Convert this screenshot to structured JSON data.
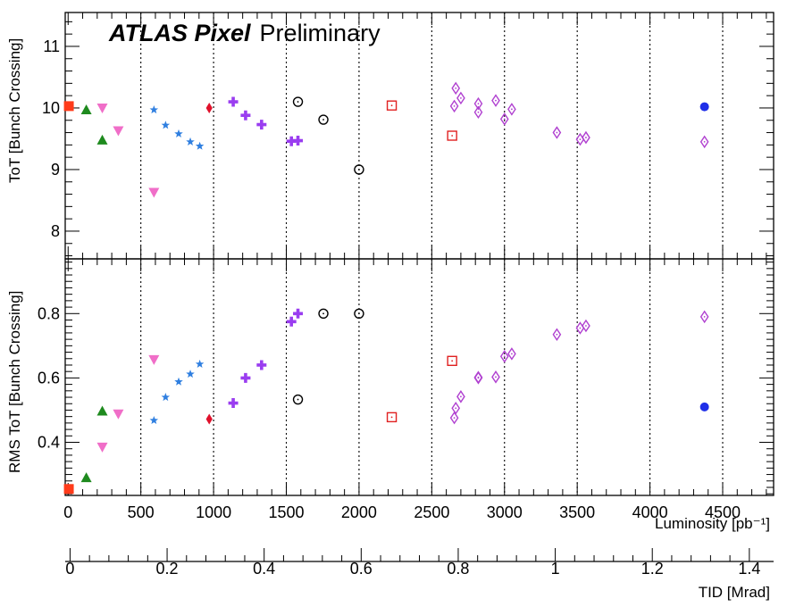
{
  "chart_data": {
    "type": "scatter",
    "title_bold": "ATLAS Pixel",
    "title_rest": "Preliminary",
    "xlabel": "Luminosity [pb⁻¹]",
    "x2label": "TID [Mrad]",
    "xlim": [
      -20,
      4850
    ],
    "xticks": [
      0,
      500,
      1000,
      1500,
      2000,
      2500,
      3000,
      3500,
      4000,
      4500
    ],
    "xtick_labels": [
      "0",
      "500",
      "1000",
      "1500",
      "2000",
      "2500",
      "3000",
      "3500",
      "4000",
      "4500"
    ],
    "x_gridlines": [
      500,
      1000,
      1500,
      2000,
      2500,
      3000,
      3500,
      4000,
      4500
    ],
    "x2lim": [
      -0.01,
      1.45
    ],
    "x2ticks": [
      0,
      0.2,
      0.4,
      0.6,
      0.8,
      1,
      1.2,
      1.4
    ],
    "x2tick_labels": [
      "0",
      "0.2",
      "0.4",
      "0.6",
      "0.8",
      "1",
      "1.2",
      "1.4"
    ],
    "panels": [
      {
        "ylabel": "ToT [Bunch Crossing]",
        "ylim": [
          7.55,
          11.55
        ],
        "yticks": [
          8,
          9,
          10,
          11
        ],
        "ytick_labels": [
          "8",
          "9",
          "10",
          "11"
        ],
        "series": [
          {
            "name": "red-square",
            "marker": "square",
            "filled": true,
            "color": "#ff3b1a",
            "points": [
              [
                5,
                10.03
              ]
            ]
          },
          {
            "name": "green-triangle",
            "marker": "triangle-up",
            "filled": true,
            "color": "#1e8a1e",
            "points": [
              [
                125,
                9.97
              ],
              [
                235,
                9.48
              ]
            ]
          },
          {
            "name": "pink-triangle-down",
            "marker": "triangle-down",
            "filled": true,
            "color": "#f06ec8",
            "points": [
              [
                235,
                10.0
              ],
              [
                345,
                9.63
              ],
              [
                590,
                8.63
              ]
            ]
          },
          {
            "name": "blue-star",
            "marker": "star",
            "filled": true,
            "color": "#2f7fe0",
            "points": [
              [
                590,
                9.97
              ],
              [
                670,
                9.72
              ],
              [
                760,
                9.58
              ],
              [
                840,
                9.45
              ],
              [
                905,
                9.38
              ]
            ]
          },
          {
            "name": "red-diamond",
            "marker": "diamond",
            "filled": true,
            "color": "#e0112b",
            "points": [
              [
                970,
                10.0
              ]
            ]
          },
          {
            "name": "purple-cross",
            "marker": "cross",
            "filled": true,
            "color": "#9a3df0",
            "points": [
              [
                1135,
                10.1
              ],
              [
                1220,
                9.88
              ],
              [
                1330,
                9.73
              ],
              [
                1535,
                9.46
              ],
              [
                1580,
                9.47
              ]
            ]
          },
          {
            "name": "black-circle",
            "marker": "circle-dot",
            "filled": false,
            "color": "#000000",
            "points": [
              [
                1580,
                10.1
              ],
              [
                1755,
                9.81
              ],
              [
                2000,
                9.0
              ]
            ]
          },
          {
            "name": "red-open-square",
            "marker": "square-dot",
            "filled": false,
            "color": "#e02020",
            "points": [
              [
                2225,
                10.04
              ],
              [
                2640,
                9.55
              ]
            ]
          },
          {
            "name": "violet-open-diamond",
            "marker": "diamond-dot",
            "filled": false,
            "color": "#b040d0",
            "points": [
              [
                2665,
                10.32
              ],
              [
                2700,
                10.16
              ],
              [
                2655,
                10.03
              ],
              [
                2820,
                10.07
              ],
              [
                2820,
                9.93
              ],
              [
                2940,
                10.12
              ],
              [
                3000,
                9.82
              ],
              [
                3050,
                9.98
              ],
              [
                3360,
                9.6
              ],
              [
                3520,
                9.49
              ],
              [
                3560,
                9.52
              ],
              [
                4375,
                9.45
              ]
            ]
          },
          {
            "name": "blue-circle",
            "marker": "circle",
            "filled": true,
            "color": "#1f2fe8",
            "points": [
              [
                4375,
                10.02
              ]
            ]
          }
        ]
      },
      {
        "ylabel": "RMS ToT [Bunch Crossing]",
        "ylim": [
          0.235,
          0.97
        ],
        "yticks": [
          0.4,
          0.6,
          0.8
        ],
        "ytick_labels": [
          "0.4",
          "0.6",
          "0.8"
        ],
        "series": [
          {
            "name": "red-square",
            "marker": "square",
            "filled": true,
            "color": "#ff3b1a",
            "points": [
              [
                5,
                0.255
              ]
            ]
          },
          {
            "name": "green-triangle",
            "marker": "triangle-up",
            "filled": true,
            "color": "#1e8a1e",
            "points": [
              [
                125,
                0.29
              ],
              [
                235,
                0.497
              ]
            ]
          },
          {
            "name": "pink-triangle-down",
            "marker": "triangle-down",
            "filled": true,
            "color": "#f06ec8",
            "points": [
              [
                235,
                0.385
              ],
              [
                345,
                0.488
              ],
              [
                590,
                0.657
              ]
            ]
          },
          {
            "name": "blue-star",
            "marker": "star",
            "filled": true,
            "color": "#2f7fe0",
            "points": [
              [
                590,
                0.468
              ],
              [
                670,
                0.54
              ],
              [
                760,
                0.588
              ],
              [
                840,
                0.612
              ],
              [
                905,
                0.643
              ]
            ]
          },
          {
            "name": "red-diamond",
            "marker": "diamond",
            "filled": true,
            "color": "#e0112b",
            "points": [
              [
                970,
                0.472
              ]
            ]
          },
          {
            "name": "purple-cross",
            "marker": "cross",
            "filled": true,
            "color": "#9a3df0",
            "points": [
              [
                1135,
                0.522
              ],
              [
                1220,
                0.6
              ],
              [
                1330,
                0.64
              ],
              [
                1535,
                0.775
              ],
              [
                1580,
                0.8
              ]
            ]
          },
          {
            "name": "black-circle",
            "marker": "circle-dot",
            "filled": false,
            "color": "#000000",
            "points": [
              [
                1580,
                0.533
              ],
              [
                1755,
                0.8
              ],
              [
                2000,
                0.8
              ]
            ]
          },
          {
            "name": "red-open-square",
            "marker": "square-dot",
            "filled": false,
            "color": "#e02020",
            "points": [
              [
                2225,
                0.478
              ],
              [
                2640,
                0.653
              ]
            ]
          },
          {
            "name": "violet-open-diamond",
            "marker": "diamond-dot",
            "filled": false,
            "color": "#b040d0",
            "points": [
              [
                2655,
                0.476
              ],
              [
                2665,
                0.506
              ],
              [
                2700,
                0.542
              ],
              [
                2820,
                0.6
              ],
              [
                2820,
                0.602
              ],
              [
                2940,
                0.603
              ],
              [
                3000,
                0.667
              ],
              [
                3050,
                0.675
              ],
              [
                3360,
                0.735
              ],
              [
                3520,
                0.755
              ],
              [
                3560,
                0.762
              ],
              [
                4375,
                0.79
              ]
            ]
          },
          {
            "name": "blue-circle",
            "marker": "circle",
            "filled": true,
            "color": "#1f2fe8",
            "points": [
              [
                4375,
                0.51
              ]
            ]
          }
        ]
      }
    ]
  }
}
